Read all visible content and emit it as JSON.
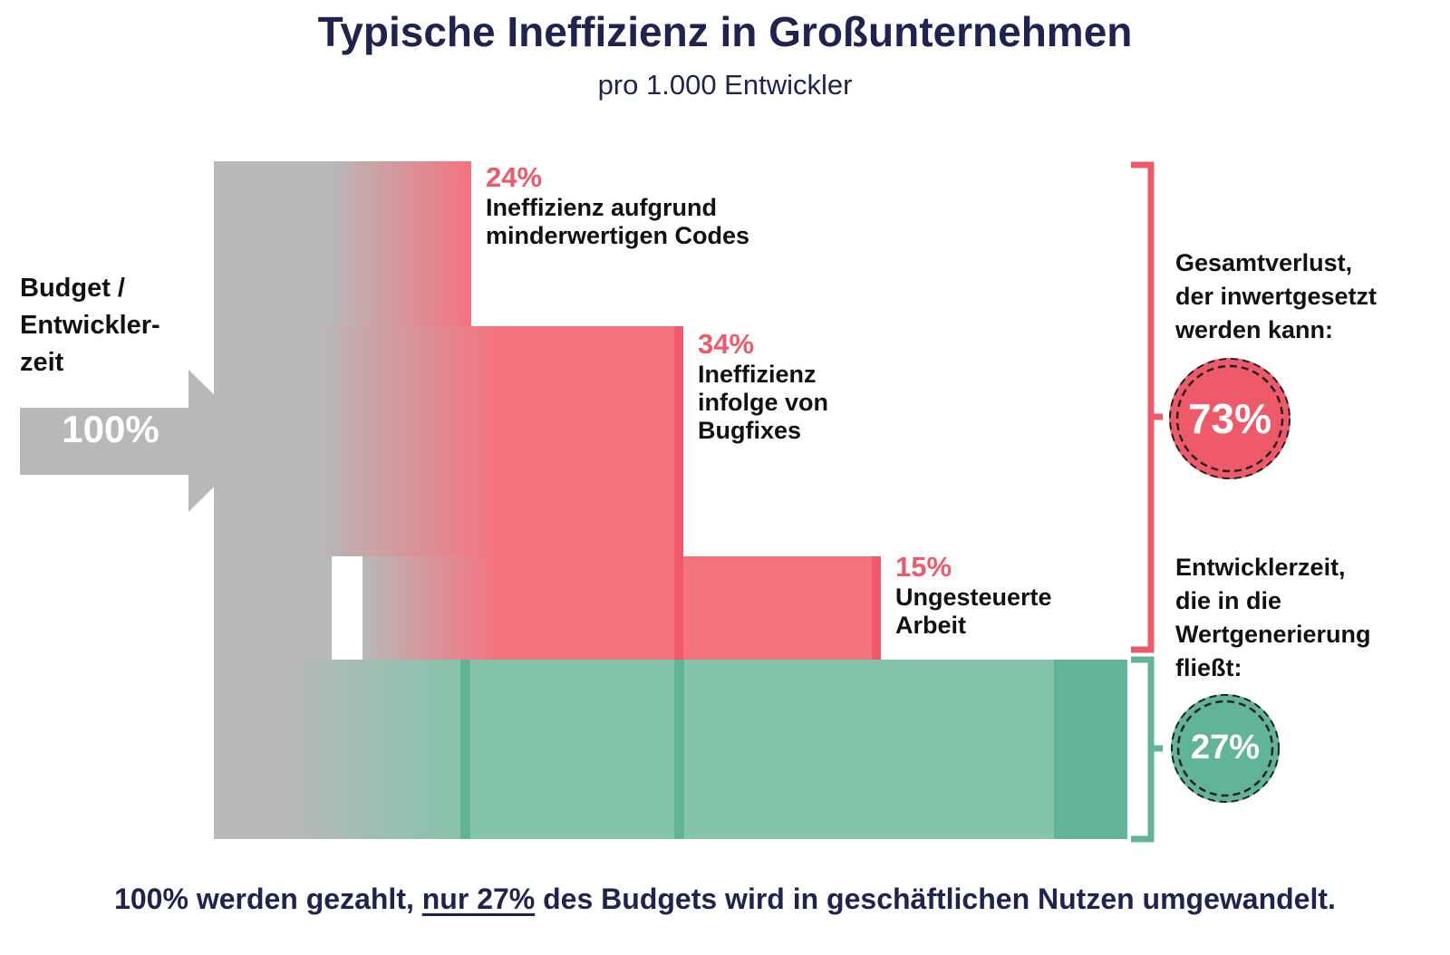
{
  "title": "Typische Ineffizienz in Großunternehmen",
  "subtitle": "pro 1.000 Entwickler",
  "input": {
    "label_lines": [
      "Budget /",
      "Entwickler-",
      "zeit"
    ],
    "value": "100%"
  },
  "segments": [
    {
      "percent_text": "24%",
      "value": 24,
      "label_lines": [
        "Ineffizienz aufgrund",
        "minderwertigen Codes"
      ]
    },
    {
      "percent_text": "34%",
      "value": 34,
      "label_lines": [
        "Ineffizienz",
        "infolge von",
        "Bugfixes"
      ]
    },
    {
      "percent_text": "15%",
      "value": 15,
      "label_lines": [
        "Ungesteuerte",
        "Arbeit"
      ]
    },
    {
      "percent_text": "",
      "value": 27,
      "label_lines": []
    }
  ],
  "summary": {
    "loss": {
      "label_lines": [
        "Gesamtverlust,",
        "der inwertgesetzt",
        "werden kann:"
      ],
      "value": "73%"
    },
    "value": {
      "label_lines": [
        "Entwicklerzeit,",
        "die in die",
        "Wertgenerierung",
        "fließt:"
      ],
      "value": "27%"
    }
  },
  "footer": {
    "before": "100% werden gezahlt, ",
    "underlined": "nur 27%",
    "after": " des Budgets wird in geschäftlichen Nutzen umgewandelt."
  },
  "colors": {
    "red": "#f4737e",
    "red_dark": "#ee5a6a",
    "green": "#84c4ab",
    "green_dark": "#62b496",
    "gray": "#b8b8b8",
    "navy": "#1f2350"
  }
}
